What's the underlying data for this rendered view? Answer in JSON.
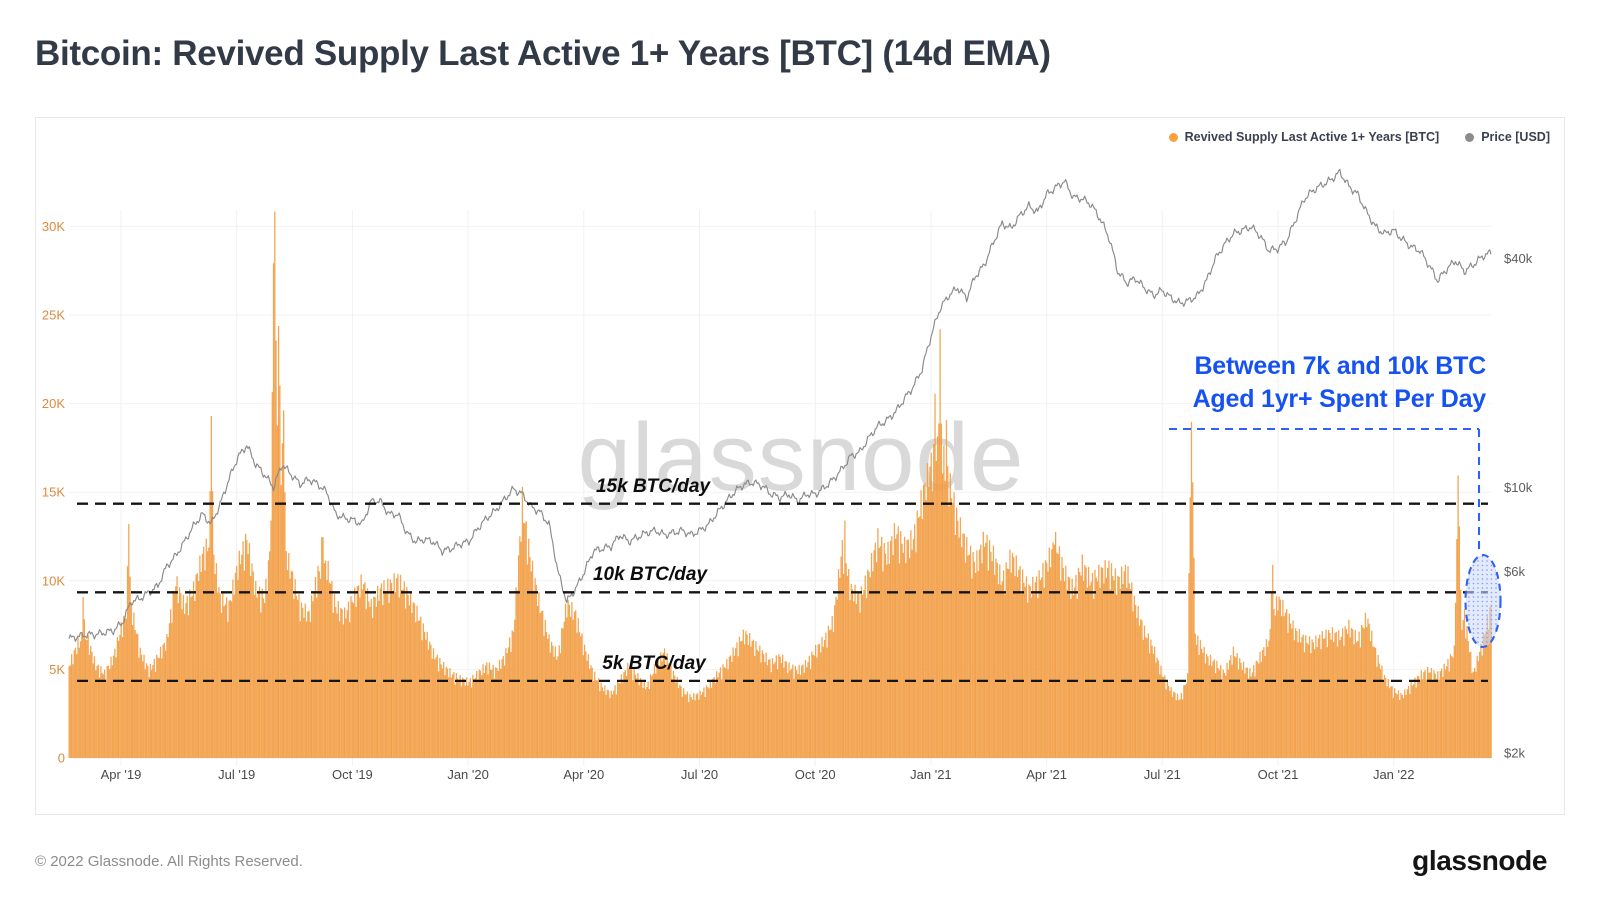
{
  "header": {
    "title": "Bitcoin: Revived Supply Last Active 1+ Years [BTC] (14d EMA)"
  },
  "legend": {
    "items": [
      {
        "label": "Revived Supply Last Active 1+ Years [BTC]",
        "color": "#F9A23C"
      },
      {
        "label": "Price [USD]",
        "color": "#8C8C8C"
      }
    ]
  },
  "watermark": "glassnode",
  "footer": {
    "copyright": "© 2022 Glassnode. All Rights Reserved.",
    "brand": "glassnode"
  },
  "chart_data": {
    "type": "bar+line",
    "title": "Bitcoin: Revived Supply Last Active 1+ Years [BTC] (14d EMA)",
    "x_ticks": [
      "Apr '19",
      "Jul '19",
      "Oct '19",
      "Jan '20",
      "Apr '20",
      "Jul '20",
      "Oct '20",
      "Jan '21",
      "Apr '21",
      "Jul '21",
      "Oct '21",
      "Jan '22"
    ],
    "left_axis": {
      "title": "Revived Supply [BTC]",
      "tick_labels": [
        "0",
        "5K",
        "10K",
        "15K",
        "20K",
        "25K",
        "30K"
      ],
      "tick_values_k": [
        0,
        5,
        10,
        15,
        20,
        25,
        30
      ],
      "range_k": [
        0,
        35
      ]
    },
    "right_axis": {
      "title": "Price [USD]",
      "scale": "log",
      "tick_labels": [
        "$2k",
        "$6k",
        "$10k",
        "$40k"
      ],
      "tick_values_kusd": [
        2,
        6,
        10,
        40
      ]
    },
    "annotations": {
      "thresholds": [
        {
          "label": "15k BTC/day",
          "value_k": 14.35
        },
        {
          "label": "10k BTC/day",
          "value_k": 9.35
        },
        {
          "label": "5k BTC/day",
          "value_k": 4.35
        }
      ],
      "callout": {
        "line1": "Between 7k and 10k BTC",
        "line2": "Aged 1yr+ Spent Per Day",
        "color": "#1652f0"
      },
      "highlight": {
        "description": "dashed blue bracket and ellipse around final weeks where 7k-10k aged BTC moved per day"
      }
    },
    "series": [
      {
        "name": "Revived Supply Last Active 1+ Years [BTC]",
        "type": "bar",
        "unit": "thousand BTC per day",
        "start": "2019-02-20",
        "step_days": 7,
        "color": "#F6A44E",
        "values": [
          5.5,
          6.8,
          7.2,
          5.5,
          5.0,
          6.0,
          8.0,
          9.0,
          6.3,
          5.2,
          6.0,
          7.0,
          10.5,
          9.0,
          10.0,
          12.0,
          13.0,
          9.5,
          9.0,
          11.5,
          13.0,
          10.0,
          9.5,
          14.0,
          13.0,
          11.0,
          9.0,
          8.5,
          11.0,
          11.5,
          9.0,
          8.5,
          9.5,
          10.5,
          9.0,
          10.0,
          10.2,
          10.6,
          9.8,
          8.8,
          7.5,
          6.2,
          5.5,
          5.0,
          4.7,
          4.5,
          5.0,
          5.5,
          5.2,
          6.0,
          7.5,
          15.0,
          11.5,
          9.0,
          7.0,
          6.0,
          9.2,
          8.5,
          6.5,
          5.0,
          4.2,
          3.8,
          4.6,
          5.5,
          4.8,
          4.2,
          5.5,
          6.3,
          5.0,
          4.0,
          3.6,
          3.8,
          4.3,
          5.0,
          5.6,
          6.5,
          7.4,
          6.8,
          6.2,
          5.6,
          6.0,
          5.4,
          5.2,
          5.6,
          6.4,
          7.0,
          8.2,
          12.5,
          10.0,
          9.5,
          11.0,
          13.0,
          12.0,
          13.5,
          12.5,
          13.0,
          15.5,
          17.5,
          18.5,
          16.5,
          14.0,
          12.5,
          11.5,
          13.0,
          12.0,
          10.5,
          12.0,
          11.0,
          10.0,
          10.5,
          11.5,
          12.8,
          11.0,
          10.0,
          11.5,
          10.5,
          11.0,
          11.3,
          10.5,
          11.2,
          9.0,
          7.5,
          6.5,
          5.0,
          4.0,
          3.5,
          5.0,
          7.0,
          6.0,
          5.6,
          5.0,
          6.3,
          5.5,
          5.0,
          6.0,
          7.0,
          9.5,
          8.5,
          7.5,
          7.0,
          6.8,
          7.2,
          7.4,
          7.2,
          7.8,
          7.0,
          8.4,
          6.3,
          4.8,
          4.0,
          3.7,
          4.3,
          4.9,
          5.2,
          4.9,
          5.5,
          6.5,
          8.5,
          5.0,
          6.8,
          9.0
        ],
        "spikes": [
          {
            "i": 1.6,
            "v": 9.5
          },
          {
            "i": 6.7,
            "v": 13.5
          },
          {
            "i": 16.0,
            "v": 19.3
          },
          {
            "i": 23.1,
            "v": 33.0
          },
          {
            "i": 23.6,
            "v": 25.5
          },
          {
            "i": 24.1,
            "v": 21.0
          },
          {
            "i": 28.5,
            "v": 14.0
          },
          {
            "i": 51.0,
            "v": 15.3
          },
          {
            "i": 87.3,
            "v": 13.7
          },
          {
            "i": 97.4,
            "v": 21.5
          },
          {
            "i": 98.0,
            "v": 24.2
          },
          {
            "i": 98.7,
            "v": 19.5
          },
          {
            "i": 110.8,
            "v": 13.2
          },
          {
            "i": 126.3,
            "v": 19.4
          },
          {
            "i": 135.4,
            "v": 11.4
          },
          {
            "i": 156.3,
            "v": 16.3
          }
        ]
      },
      {
        "name": "Price [USD]",
        "type": "line",
        "unit": "thousand USD",
        "start": "2019-02-20",
        "step_days": 7,
        "color": "#8A8A8A",
        "values": [
          4.0,
          4.05,
          4.1,
          4.1,
          4.15,
          4.2,
          4.4,
          5.0,
          5.1,
          5.3,
          5.5,
          6.2,
          6.6,
          7.2,
          7.9,
          8.5,
          8.0,
          9.0,
          10.5,
          12.0,
          12.9,
          11.5,
          10.8,
          10.0,
          11.5,
          10.8,
          10.2,
          10.5,
          10.2,
          9.7,
          8.5,
          8.3,
          8.2,
          8.0,
          9.2,
          9.2,
          8.5,
          8.5,
          7.6,
          7.2,
          7.3,
          7.2,
          6.8,
          6.9,
          7.1,
          7.2,
          7.8,
          8.3,
          8.7,
          9.3,
          9.9,
          9.6,
          8.9,
          8.6,
          8.0,
          6.0,
          5.0,
          5.4,
          6.0,
          6.8,
          6.9,
          7.0,
          7.5,
          7.2,
          7.4,
          7.6,
          7.7,
          7.5,
          7.6,
          7.7,
          7.5,
          7.7,
          8.0,
          8.6,
          9.2,
          9.8,
          10.2,
          10.3,
          10.1,
          9.6,
          9.4,
          9.6,
          9.2,
          9.6,
          9.6,
          10.0,
          10.5,
          11.2,
          12.1,
          12.4,
          13.5,
          14.5,
          15.0,
          15.8,
          17.1,
          18.4,
          20.5,
          25.0,
          29.5,
          32.0,
          33.5,
          31.5,
          36.0,
          38.5,
          44.0,
          49.5,
          48.0,
          52.0,
          55.0,
          53.0,
          59.0,
          61.5,
          64.0,
          58.0,
          57.5,
          55.5,
          51.0,
          45.5,
          37.0,
          34.5,
          35.5,
          33.5,
          32.0,
          33.0,
          31.5,
          30.5,
          31.0,
          32.0,
          35.0,
          40.0,
          43.5,
          46.5,
          47.5,
          48.5,
          46.0,
          42.0,
          42.5,
          44.5,
          50.5,
          57.5,
          60.5,
          62.5,
          64.5,
          67.5,
          62.0,
          59.0,
          53.0,
          48.5,
          46.5,
          47.5,
          45.0,
          43.0,
          42.0,
          38.5,
          35.0,
          37.5,
          39.5,
          37.0,
          38.5,
          40.5,
          41.5
        ]
      }
    ]
  }
}
